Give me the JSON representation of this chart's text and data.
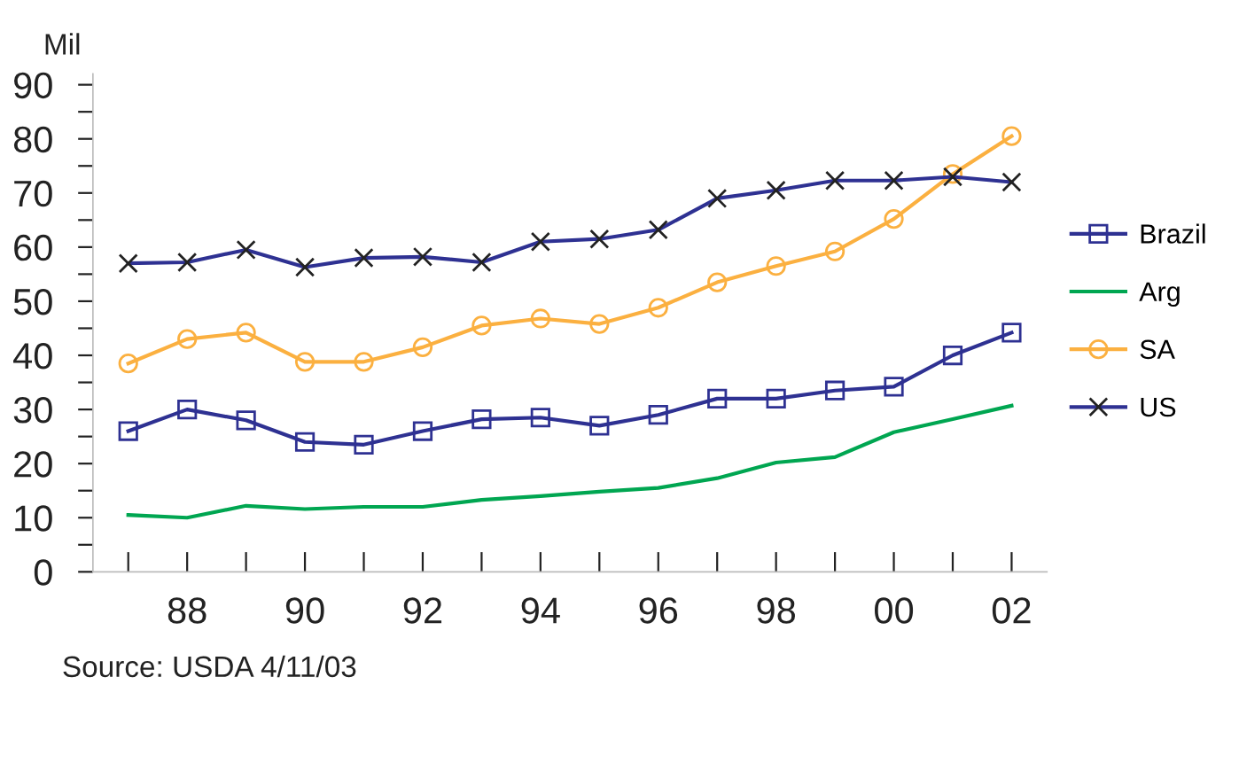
{
  "chart_data": {
    "type": "line",
    "ylabel": "Mil",
    "annotations": [
      "Source: USDA 4/11/03"
    ],
    "x": [
      1987,
      1988,
      1989,
      1990,
      1991,
      1992,
      1993,
      1994,
      1995,
      1996,
      1997,
      1998,
      1999,
      2000,
      2001,
      2002
    ],
    "series": [
      {
        "name": "Brazil",
        "color": "#2e3192",
        "marker": "square",
        "values": [
          26,
          30,
          28,
          24,
          23.5,
          26,
          28.2,
          28.5,
          27,
          29,
          32,
          32,
          33.5,
          34.2,
          40,
          44.2
        ]
      },
      {
        "name": "Arg",
        "color": "#00a651",
        "marker": "none",
        "values": [
          10.5,
          10,
          12.2,
          11.6,
          12,
          12,
          13.3,
          14,
          14.8,
          15.5,
          17.3,
          20.2,
          21.2,
          25.8,
          28.2,
          30.7
        ]
      },
      {
        "name": "SA",
        "color": "#fbb040",
        "marker": "circle",
        "values": [
          38.5,
          43,
          44.2,
          38.8,
          38.8,
          41.5,
          45.5,
          46.8,
          45.8,
          48.8,
          53.5,
          56.5,
          59.2,
          65.2,
          73.5,
          80.5
        ]
      },
      {
        "name": "US",
        "color": "#2e3192",
        "marker": "cross",
        "values": [
          57,
          57.2,
          59.5,
          56.3,
          58,
          58.2,
          57.2,
          61,
          61.5,
          63.2,
          69,
          70.5,
          72.3,
          72.3,
          73,
          72
        ]
      }
    ],
    "xlim": [
      1986.4,
      2002.6
    ],
    "xticks": [
      {
        "value": 1987,
        "label": null
      },
      {
        "value": 1988,
        "label": "88"
      },
      {
        "value": 1989,
        "label": null
      },
      {
        "value": 1990,
        "label": "90"
      },
      {
        "value": 1991,
        "label": null
      },
      {
        "value": 1992,
        "label": "92"
      },
      {
        "value": 1993,
        "label": null
      },
      {
        "value": 1994,
        "label": "94"
      },
      {
        "value": 1995,
        "label": null
      },
      {
        "value": 1996,
        "label": "96"
      },
      {
        "value": 1997,
        "label": null
      },
      {
        "value": 1998,
        "label": "98"
      },
      {
        "value": 1999,
        "label": null
      },
      {
        "value": 2000,
        "label": "00"
      },
      {
        "value": 2001,
        "label": null
      },
      {
        "value": 2002,
        "label": "02"
      }
    ],
    "ylim": [
      0,
      92
    ],
    "yticks": [
      0,
      {
        "value": 5,
        "label": null
      },
      10,
      {
        "value": 15,
        "label": null
      },
      20,
      {
        "value": 25,
        "label": null
      },
      30,
      {
        "value": 35,
        "label": null
      },
      40,
      {
        "value": 45,
        "label": null
      },
      50,
      {
        "value": 55,
        "label": null
      },
      60,
      {
        "value": 65,
        "label": null
      },
      70,
      {
        "value": 75,
        "label": null
      },
      80,
      {
        "value": 85,
        "label": null
      },
      90
    ],
    "grid": false,
    "legend": "right",
    "line_style": "solid"
  }
}
